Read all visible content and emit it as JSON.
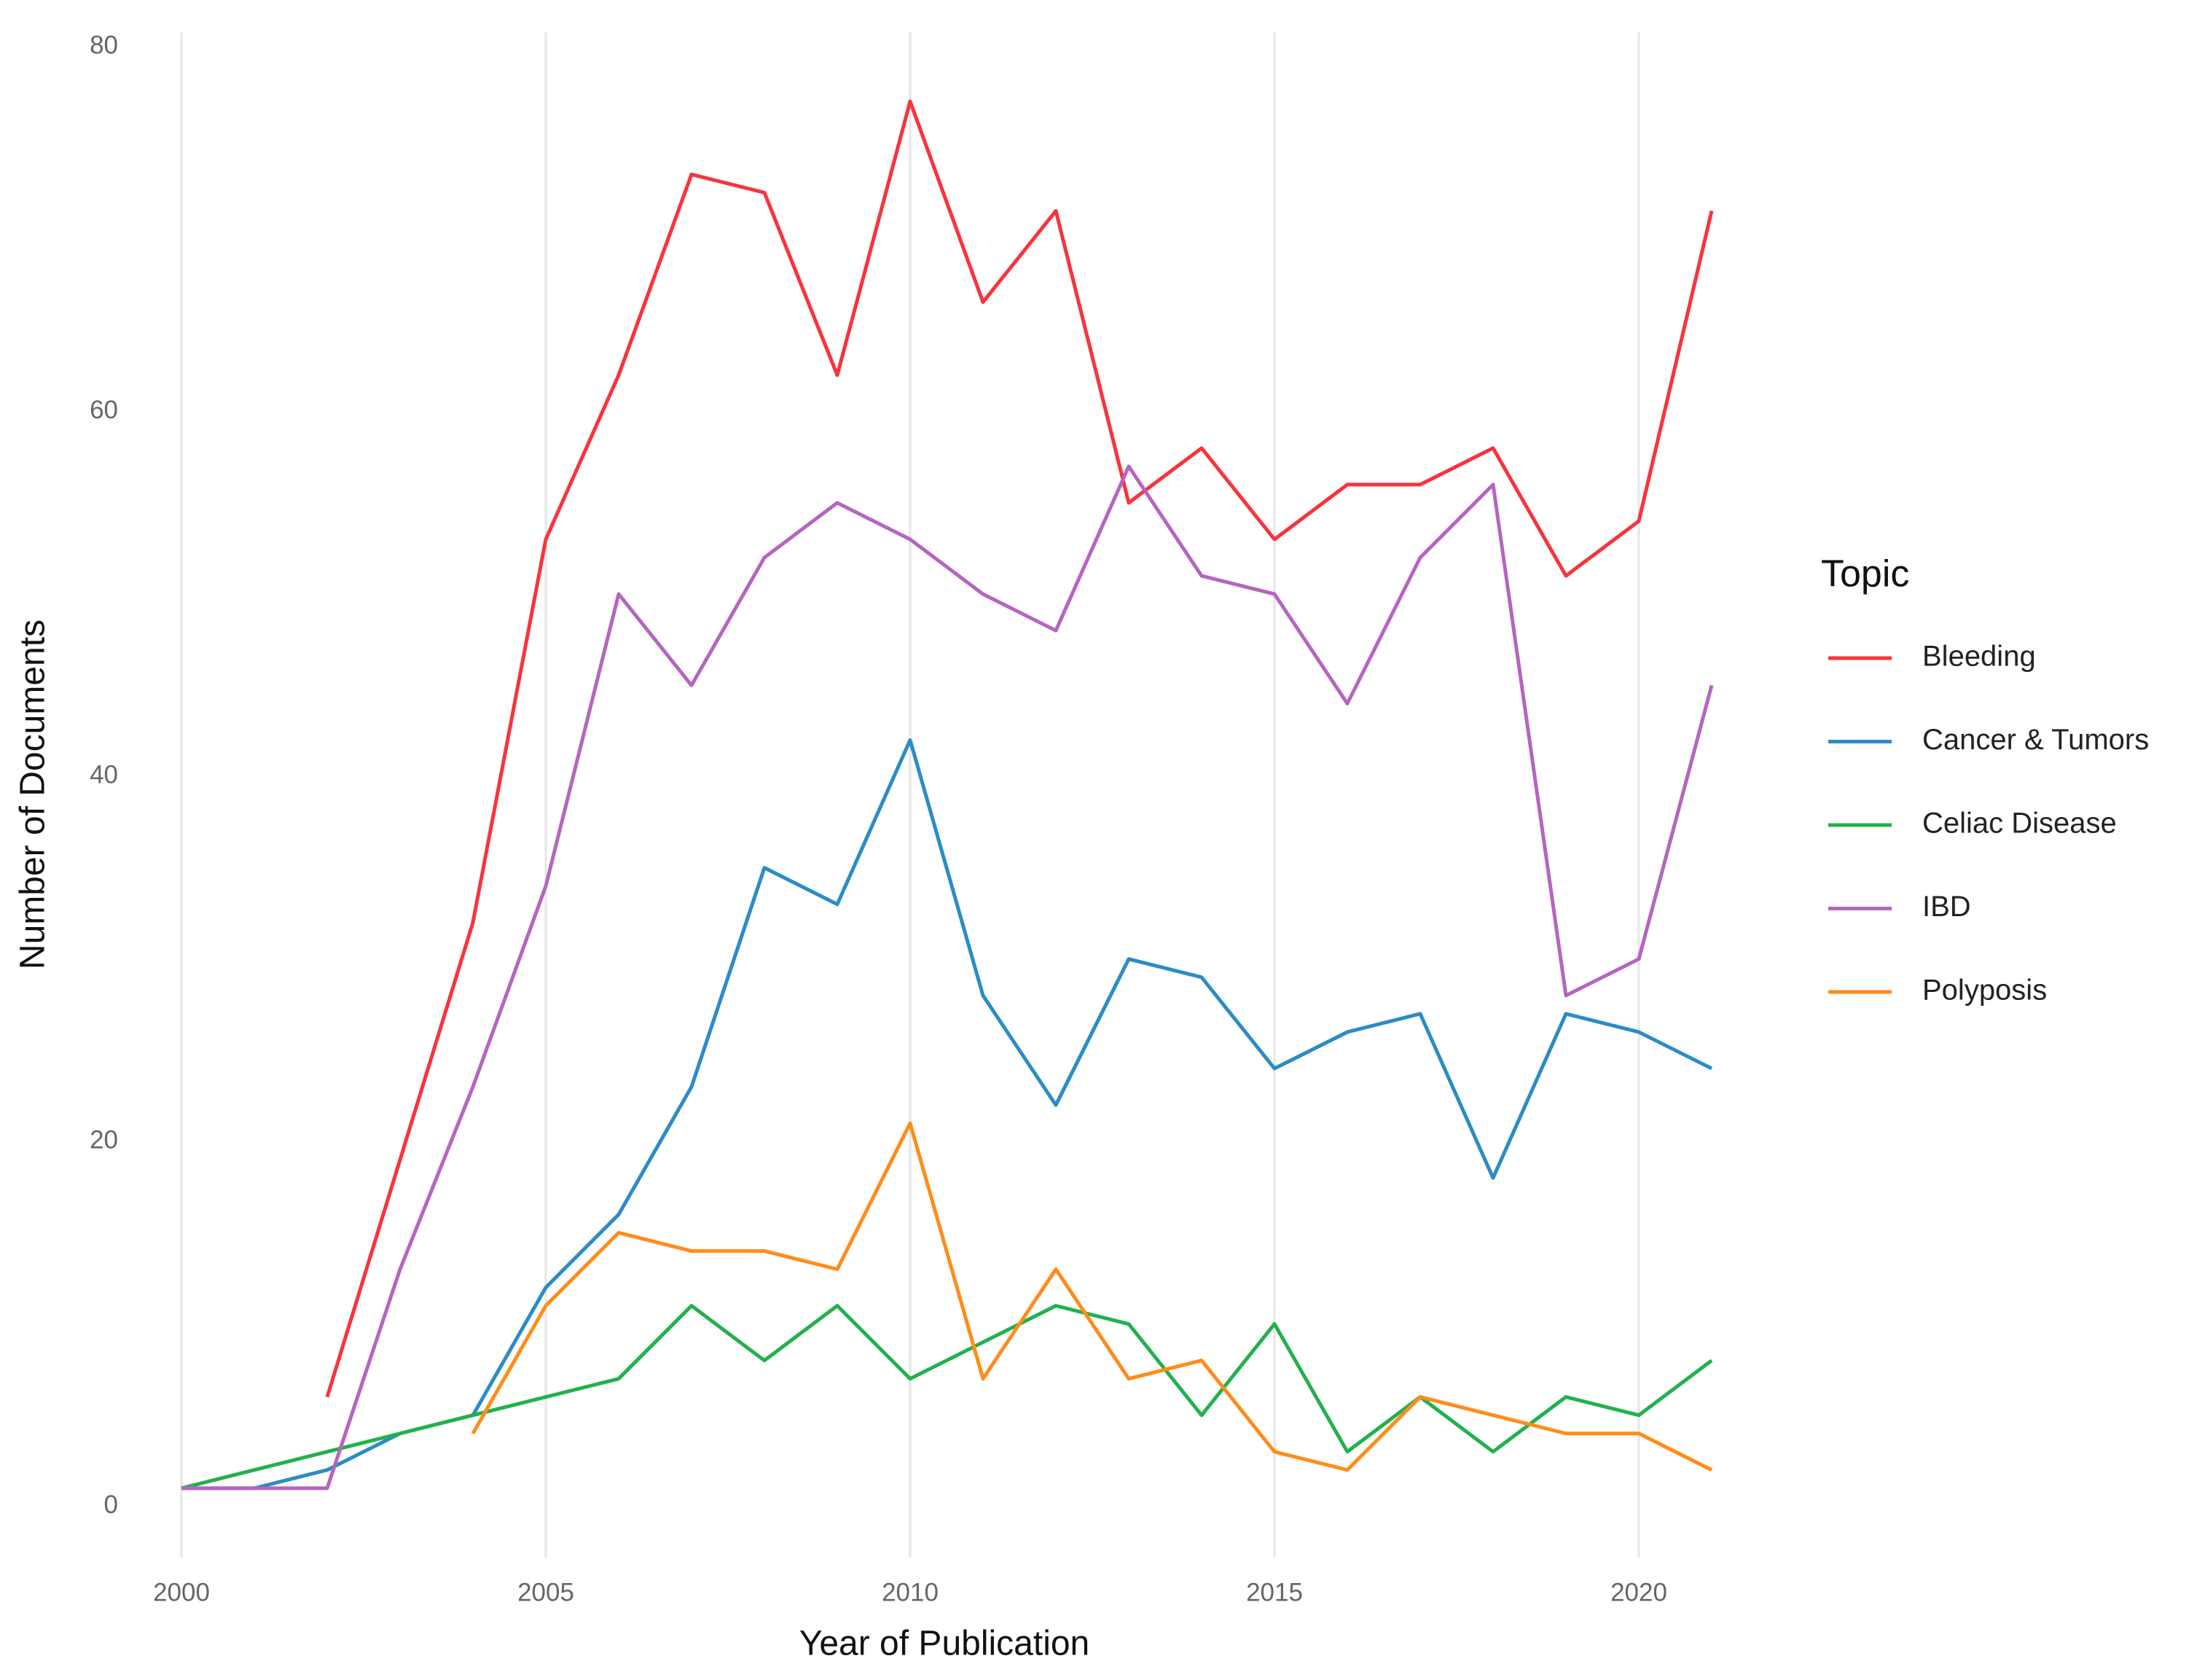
{
  "chart_data": {
    "type": "line",
    "x_label": "Year of Publication",
    "y_label": "Number of Documents",
    "x": [
      2000,
      2001,
      2002,
      2003,
      2004,
      2005,
      2006,
      2007,
      2008,
      2009,
      2010,
      2011,
      2012,
      2013,
      2014,
      2015,
      2016,
      2017,
      2018,
      2019,
      2020,
      2021
    ],
    "series": [
      {
        "name": "Bleeding",
        "color": "#f8333c",
        "values": [
          null,
          null,
          6,
          19,
          32,
          53,
          62,
          73,
          72,
          62,
          77,
          66,
          71,
          55,
          58,
          53,
          56,
          56,
          58,
          51,
          54,
          71
        ]
      },
      {
        "name": "Cancer & Tumors",
        "color": "#2b8cc4",
        "values": [
          1,
          1,
          2,
          4,
          5,
          12,
          16,
          23,
          35,
          33,
          42,
          28,
          22,
          30,
          29,
          24,
          26,
          27,
          18,
          27,
          26,
          24
        ]
      },
      {
        "name": "Celiac Disease",
        "color": "#22b14c",
        "values": [
          1,
          2,
          3,
          4,
          5,
          6,
          7,
          11,
          8,
          11,
          7,
          9,
          11,
          10,
          5,
          10,
          3,
          6,
          3,
          6,
          5,
          8
        ]
      },
      {
        "name": "IBD",
        "color": "#b565c0",
        "values": [
          1,
          1,
          1,
          13,
          23,
          34,
          50,
          45,
          52,
          55,
          53,
          50,
          48,
          57,
          51,
          50,
          44,
          52,
          56,
          28,
          30,
          45
        ]
      },
      {
        "name": "Polyposis",
        "color": "#ff8c1a",
        "values": [
          null,
          null,
          null,
          null,
          4,
          11,
          15,
          14,
          14,
          13,
          21,
          7,
          13,
          7,
          8,
          3,
          2,
          6,
          5,
          4,
          4,
          2
        ]
      }
    ],
    "xlim": [
      1998.95,
      2022.05
    ],
    "xticks": [
      2000,
      2005,
      2010,
      2015,
      2020
    ],
    "ylim": [
      -2.8,
      80.8
    ],
    "yticks": [
      0,
      20,
      40,
      60,
      80
    ],
    "grid": "x",
    "legend_title": "Topic",
    "legend": "right"
  }
}
